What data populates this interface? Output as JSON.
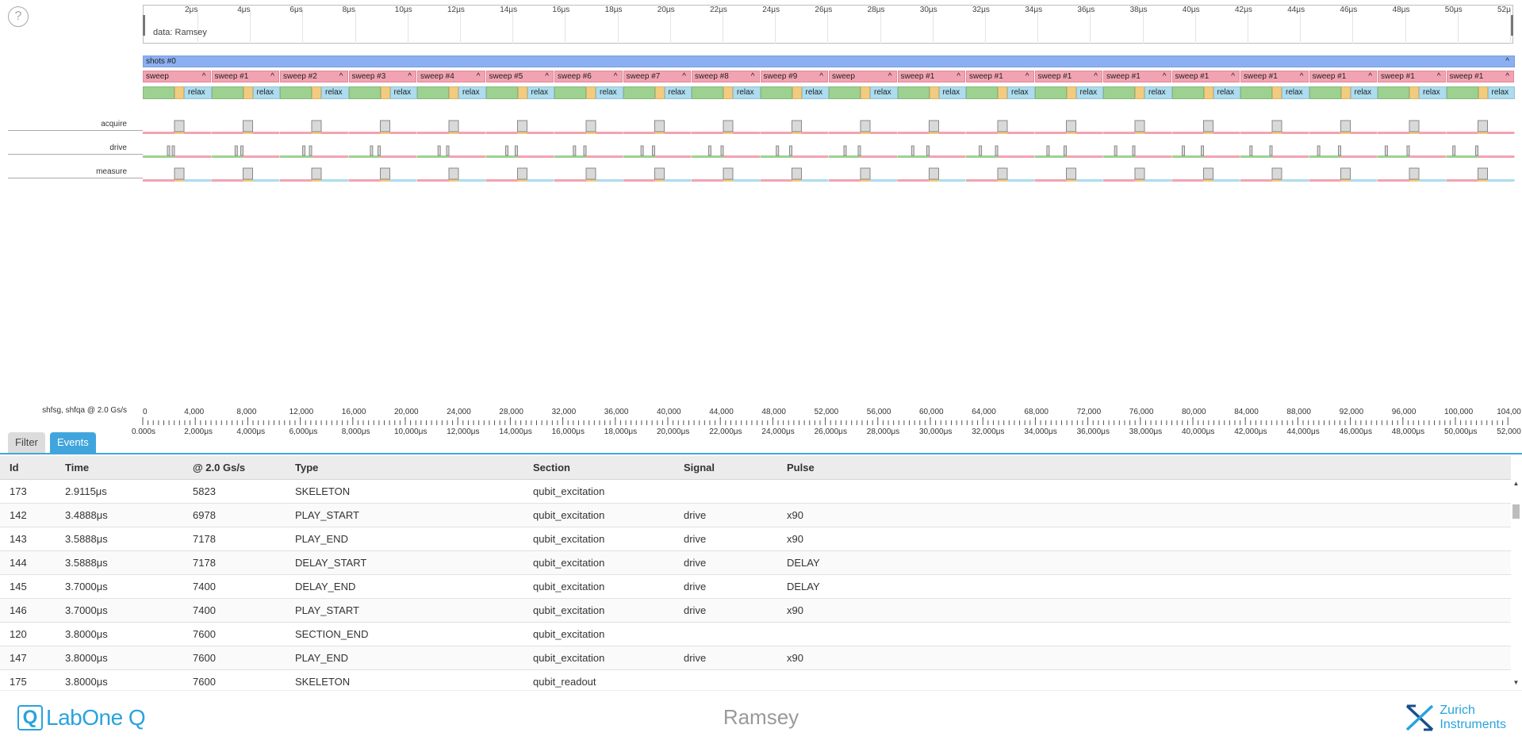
{
  "help": {
    "glyph": "?"
  },
  "overview": {
    "label": "data: Ramsey",
    "ticks": [
      "2μs",
      "4μs",
      "6μs",
      "8μs",
      "10μs",
      "12μs",
      "14μs",
      "16μs",
      "18μs",
      "20μs",
      "22μs",
      "24μs",
      "26μs",
      "28μs",
      "30μs",
      "32μs",
      "34μs",
      "36μs",
      "38μs",
      "40μs",
      "42μs",
      "44μs",
      "46μs",
      "48μs",
      "50μs",
      "52μ"
    ]
  },
  "timeline": {
    "shots_label": "shots #0",
    "sweep_labels": [
      "sweep",
      "sweep #1",
      "sweep #2",
      "sweep #3",
      "sweep #4",
      "sweep #5",
      "sweep #6",
      "sweep #7",
      "sweep #8",
      "sweep #9",
      "sweep",
      "sweep #1",
      "sweep #1",
      "sweep #1",
      "sweep #1",
      "sweep #1",
      "sweep #1",
      "sweep #1",
      "sweep #1",
      "sweep #1"
    ],
    "relax_label": "relax",
    "caret": "^",
    "signals": [
      "acquire",
      "drive",
      "measure"
    ],
    "colors": {
      "shots": "#8ab0f2",
      "sweep": "#f2a3b1",
      "excitation": "#9dd190",
      "readout": "#f2cc7e",
      "relax": "#acdcee",
      "pulse": "#d9d9d9"
    }
  },
  "ruler": {
    "label": "shfsg, shfqa @ 2.0 Gs/s",
    "samples": [
      "0",
      "4,000",
      "8,000",
      "12,000",
      "16,000",
      "20,000",
      "24,000",
      "28,000",
      "32,000",
      "36,000",
      "40,000",
      "44,000",
      "48,000",
      "52,000",
      "56,000",
      "60,000",
      "64,000",
      "68,000",
      "72,000",
      "76,000",
      "80,000",
      "84,000",
      "88,000",
      "92,000",
      "96,000",
      "100,000",
      "104,00"
    ],
    "times": [
      "0.000s",
      "2,000μs",
      "4,000μs",
      "6,000μs",
      "8,000μs",
      "10,000μs",
      "12,000μs",
      "14,000μs",
      "16,000μs",
      "18,000μs",
      "20,000μs",
      "22,000μs",
      "24,000μs",
      "26,000μs",
      "28,000μs",
      "30,000μs",
      "32,000μs",
      "34,000μs",
      "36,000μs",
      "38,000μs",
      "40,000μs",
      "42,000μs",
      "44,000μs",
      "46,000μs",
      "48,000μs",
      "50,000μs",
      "52,000"
    ]
  },
  "tabs": {
    "filter": "Filter",
    "events": "Events"
  },
  "table": {
    "columns": [
      "Id",
      "Time",
      "@ 2.0 Gs/s",
      "Type",
      "Section",
      "Signal",
      "Pulse"
    ],
    "rows": [
      [
        "173",
        "2.9115μs",
        "5823",
        "SKELETON",
        "qubit_excitation",
        "",
        ""
      ],
      [
        "142",
        "3.4888μs",
        "6978",
        "PLAY_START",
        "qubit_excitation",
        "drive",
        "x90"
      ],
      [
        "143",
        "3.5888μs",
        "7178",
        "PLAY_END",
        "qubit_excitation",
        "drive",
        "x90"
      ],
      [
        "144",
        "3.5888μs",
        "7178",
        "DELAY_START",
        "qubit_excitation",
        "drive",
        "DELAY"
      ],
      [
        "145",
        "3.7000μs",
        "7400",
        "DELAY_END",
        "qubit_excitation",
        "drive",
        "DELAY"
      ],
      [
        "146",
        "3.7000μs",
        "7400",
        "PLAY_START",
        "qubit_excitation",
        "drive",
        "x90"
      ],
      [
        "120",
        "3.8000μs",
        "7600",
        "SECTION_END",
        "qubit_excitation",
        "",
        ""
      ],
      [
        "147",
        "3.8000μs",
        "7600",
        "PLAY_END",
        "qubit_excitation",
        "drive",
        "x90"
      ],
      [
        "175",
        "3.8000μs",
        "7600",
        "SKELETON",
        "qubit_readout",
        "",
        ""
      ]
    ]
  },
  "scrollbar": {
    "up": "▲",
    "down": "▼"
  },
  "footer": {
    "brand": "LabOne Q",
    "brand_mark": "Q",
    "title": "Ramsey",
    "company_line1": "Zurich",
    "company_line2": "Instruments"
  }
}
